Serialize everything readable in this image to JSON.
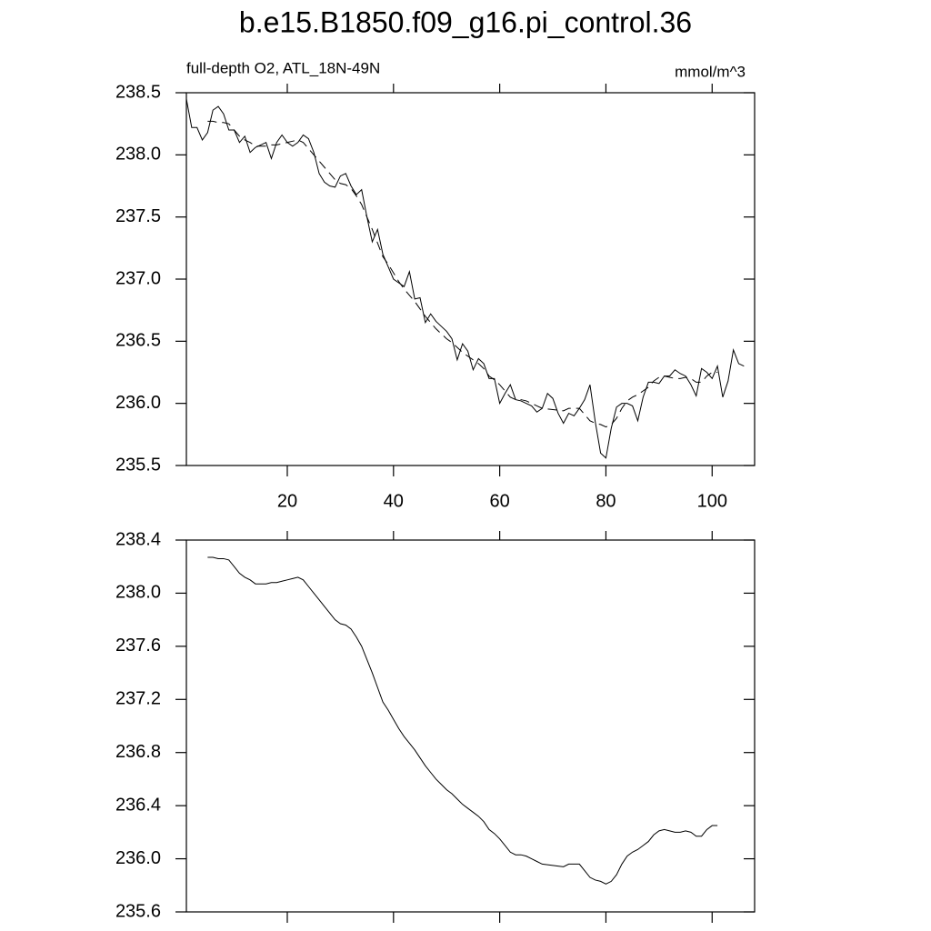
{
  "chart_data": [
    {
      "type": "line",
      "title": "b.e15.B1850.f09_g16.pi_control.36",
      "subtitle": "full-depth O2, ATL_18N-49N",
      "units": "mmol/m^3",
      "xlim": [
        1,
        108
      ],
      "xticks": [
        20,
        40,
        60,
        80,
        100
      ],
      "ylim": [
        235.5,
        238.5
      ],
      "yticks": [
        {
          "value": 235.5,
          "label": "235.5"
        },
        {
          "value": 236,
          "label": "236.0"
        },
        236.5,
        {
          "value": 237,
          "label": "237.0"
        },
        237.5,
        {
          "value": 238,
          "label": "238.0"
        },
        238.5
      ],
      "series": [
        {
          "color": "#000000",
          "dashed": false,
          "x": [
            1,
            2,
            3,
            4,
            5,
            6,
            7,
            8,
            9,
            10,
            11,
            12,
            13,
            14,
            15,
            16,
            17,
            18,
            19,
            20,
            21,
            22,
            23,
            24,
            25,
            26,
            27,
            28,
            29,
            30,
            31,
            32,
            33,
            34,
            35,
            36,
            37,
            38,
            39,
            40,
            41,
            42,
            43,
            44,
            45,
            46,
            47,
            48,
            49,
            50,
            51,
            52,
            53,
            54,
            55,
            56,
            57,
            58,
            59,
            60,
            61,
            62,
            63,
            64,
            65,
            66,
            67,
            68,
            69,
            70,
            71,
            72,
            73,
            74,
            75,
            76,
            77,
            78,
            79,
            80,
            81,
            82,
            83,
            84,
            85,
            86,
            87,
            88,
            89,
            90,
            91,
            92,
            93,
            94,
            95,
            96,
            97,
            98,
            99,
            100,
            101,
            102,
            103,
            104,
            105,
            106
          ],
          "values": [
            238.45,
            238.22,
            238.22,
            238.12,
            238.18,
            238.36,
            238.39,
            238.33,
            238.2,
            238.2,
            238.1,
            238.15,
            238.02,
            238.06,
            238.08,
            238.1,
            237.97,
            238.1,
            238.16,
            238.1,
            238.07,
            238.1,
            238.16,
            238.13,
            238.02,
            237.85,
            237.78,
            237.75,
            237.74,
            237.83,
            237.85,
            237.75,
            237.68,
            237.72,
            237.5,
            237.3,
            237.4,
            237.2,
            237.1,
            237.0,
            236.97,
            236.94,
            237.06,
            236.84,
            236.85,
            236.65,
            236.72,
            236.66,
            236.62,
            236.58,
            236.52,
            236.35,
            236.48,
            236.42,
            236.27,
            236.36,
            236.32,
            236.2,
            236.2,
            236.0,
            236.08,
            236.15,
            236.03,
            236.02,
            236.0,
            235.98,
            235.93,
            235.96,
            236.08,
            236.04,
            235.92,
            235.84,
            235.92,
            235.9,
            235.96,
            236.03,
            236.15,
            235.85,
            235.6,
            235.56,
            235.8,
            235.97,
            236.0,
            236.0,
            235.98,
            235.86,
            236.05,
            236.17,
            236.17,
            236.16,
            236.22,
            236.22,
            236.27,
            236.24,
            236.22,
            236.15,
            236.06,
            236.28,
            236.25,
            236.2,
            236.3,
            236.05,
            236.18,
            236.43,
            236.32,
            236.3
          ]
        },
        {
          "color": "#000000",
          "dashed": true,
          "x": [
            5,
            6,
            7,
            8,
            9,
            10,
            11,
            12,
            13,
            14,
            15,
            16,
            17,
            18,
            19,
            20,
            21,
            22,
            23,
            24,
            25,
            26,
            27,
            28,
            29,
            30,
            31,
            32,
            33,
            34,
            35,
            36,
            37,
            38,
            39,
            40,
            41,
            42,
            43,
            44,
            45,
            46,
            47,
            48,
            49,
            50,
            51,
            52,
            53,
            54,
            55,
            56,
            57,
            58,
            59,
            60,
            61,
            62,
            63,
            64,
            65,
            66,
            67,
            68,
            69,
            70,
            71,
            72,
            73,
            74,
            75,
            76,
            77,
            78,
            79,
            80,
            81,
            82,
            83,
            84,
            85,
            86,
            87,
            88,
            89,
            90,
            91,
            92,
            93,
            94,
            95,
            96,
            97,
            98,
            99,
            100,
            101
          ],
          "values": [
            238.27,
            238.27,
            238.26,
            238.26,
            238.25,
            238.2,
            238.15,
            238.12,
            238.1,
            238.07,
            238.07,
            238.07,
            238.08,
            238.08,
            238.09,
            238.1,
            238.11,
            238.12,
            238.1,
            238.05,
            238.0,
            237.95,
            237.9,
            237.85,
            237.8,
            237.77,
            237.76,
            237.73,
            237.67,
            237.6,
            237.5,
            237.4,
            237.29,
            237.18,
            237.12,
            237.05,
            236.98,
            236.92,
            236.87,
            236.82,
            236.76,
            236.7,
            236.65,
            236.6,
            236.56,
            236.52,
            236.49,
            236.45,
            236.41,
            236.38,
            236.35,
            236.32,
            236.28,
            236.22,
            236.19,
            236.15,
            236.1,
            236.05,
            236.03,
            236.03,
            236.02,
            236.0,
            235.98,
            235.96,
            235.955,
            235.95,
            235.945,
            235.94,
            235.96,
            235.96,
            235.96,
            235.91,
            235.86,
            235.84,
            235.83,
            235.81,
            235.83,
            235.88,
            235.96,
            236.02,
            236.05,
            236.07,
            236.1,
            236.13,
            236.18,
            236.21,
            236.22,
            236.21,
            236.2,
            236.2,
            236.21,
            236.2,
            236.17,
            236.17,
            236.22,
            236.25,
            236.25
          ]
        }
      ]
    },
    {
      "type": "line",
      "xlim": [
        1,
        108
      ],
      "xticks": [
        20,
        40,
        60,
        80,
        100
      ],
      "ylim": [
        235.6,
        238.4
      ],
      "yticks": [
        235.6,
        {
          "value": 236,
          "label": "236.0"
        },
        236.4,
        236.8,
        237.2,
        237.6,
        {
          "value": 238,
          "label": "238.0"
        },
        238.4
      ],
      "series": [
        {
          "color": "#000000",
          "dashed": false,
          "x": [
            5,
            6,
            7,
            8,
            9,
            10,
            11,
            12,
            13,
            14,
            15,
            16,
            17,
            18,
            19,
            20,
            21,
            22,
            23,
            24,
            25,
            26,
            27,
            28,
            29,
            30,
            31,
            32,
            33,
            34,
            35,
            36,
            37,
            38,
            39,
            40,
            41,
            42,
            43,
            44,
            45,
            46,
            47,
            48,
            49,
            50,
            51,
            52,
            53,
            54,
            55,
            56,
            57,
            58,
            59,
            60,
            61,
            62,
            63,
            64,
            65,
            66,
            67,
            68,
            69,
            70,
            71,
            72,
            73,
            74,
            75,
            76,
            77,
            78,
            79,
            80,
            81,
            82,
            83,
            84,
            85,
            86,
            87,
            88,
            89,
            90,
            91,
            92,
            93,
            94,
            95,
            96,
            97,
            98,
            99,
            100,
            101
          ],
          "values": [
            238.27,
            238.27,
            238.26,
            238.26,
            238.25,
            238.2,
            238.15,
            238.12,
            238.1,
            238.07,
            238.07,
            238.07,
            238.08,
            238.08,
            238.09,
            238.1,
            238.11,
            238.12,
            238.1,
            238.05,
            238.0,
            237.95,
            237.9,
            237.85,
            237.8,
            237.77,
            237.76,
            237.73,
            237.67,
            237.6,
            237.5,
            237.4,
            237.29,
            237.18,
            237.12,
            237.05,
            236.98,
            236.92,
            236.87,
            236.82,
            236.76,
            236.7,
            236.65,
            236.6,
            236.56,
            236.52,
            236.49,
            236.45,
            236.41,
            236.38,
            236.35,
            236.32,
            236.28,
            236.22,
            236.19,
            236.15,
            236.1,
            236.05,
            236.03,
            236.03,
            236.02,
            236.0,
            235.98,
            235.96,
            235.955,
            235.95,
            235.945,
            235.94,
            235.96,
            235.96,
            235.96,
            235.91,
            235.86,
            235.84,
            235.83,
            235.81,
            235.83,
            235.88,
            235.96,
            236.02,
            236.05,
            236.07,
            236.1,
            236.13,
            236.18,
            236.21,
            236.22,
            236.21,
            236.2,
            236.2,
            236.21,
            236.2,
            236.17,
            236.17,
            236.22,
            236.25,
            236.25
          ]
        }
      ]
    }
  ]
}
